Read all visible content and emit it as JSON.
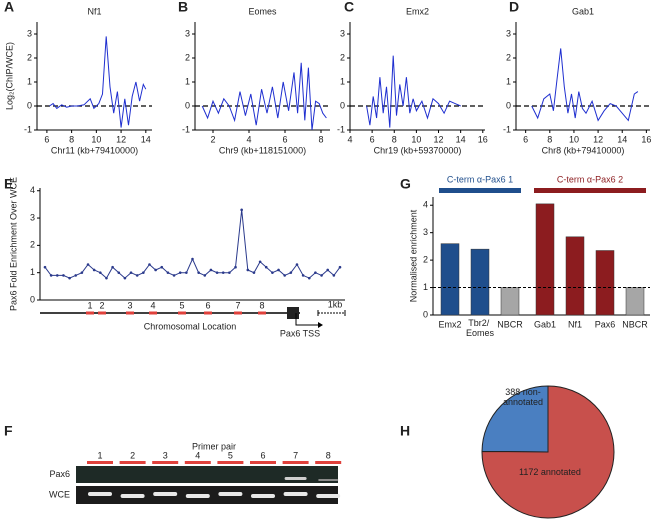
{
  "chart_data": [
    {
      "panel": "A",
      "type": "line",
      "title": "Nf1",
      "xlabel": "Chr11 (kb+79410000)",
      "ylabel": "Log₂(ChIP/WCE)",
      "x": [
        6.2,
        6.5,
        6.8,
        7.2,
        7.6,
        8,
        8.5,
        9,
        9.5,
        9.8,
        10.2,
        10.5,
        10.8,
        11.1,
        11.4,
        11.7,
        12,
        12.3,
        12.6,
        12.9,
        13.2,
        13.5,
        13.8,
        14
      ],
      "series": [
        {
          "color": "#1f2fd0",
          "values": [
            0,
            0.1,
            -0.1,
            0.05,
            -0.05,
            0,
            0,
            0.05,
            0.3,
            -0.1,
            0.1,
            0.5,
            2.9,
            0.8,
            -0.3,
            0.6,
            -0.9,
            0.3,
            -0.8,
            0.4,
            1,
            0.2,
            0.9,
            0.7
          ]
        }
      ],
      "xlim": [
        5.2,
        14.5
      ],
      "xticks": [
        6,
        8,
        10,
        12,
        14
      ],
      "ylim": [
        -1,
        3.5
      ],
      "yticks": [
        -1,
        0,
        1,
        2,
        3
      ],
      "reference_line": 0
    },
    {
      "panel": "B",
      "type": "line",
      "title": "Eomes",
      "xlabel": "Chr9 (kb+118151000)",
      "x": [
        1.4,
        1.7,
        2.0,
        2.3,
        2.6,
        2.9,
        3.2,
        3.5,
        3.8,
        4.1,
        4.4,
        4.7,
        5.0,
        5.3,
        5.6,
        5.9,
        6.2,
        6.5,
        6.7,
        6.9,
        7.1,
        7.3,
        7.5,
        7.7,
        7.9,
        8.1,
        8.3
      ],
      "series": [
        {
          "color": "#1f2fd0",
          "values": [
            0,
            -0.5,
            0.2,
            -0.3,
            0.3,
            0,
            -0.6,
            0.6,
            -0.4,
            0.5,
            -0.8,
            0.7,
            -0.3,
            0.8,
            -0.5,
            1.0,
            -0.2,
            1.4,
            -0.3,
            1.8,
            -0.6,
            1.6,
            -1.0,
            0.2,
            0.1,
            -0.3,
            -0.5
          ]
        }
      ],
      "xlim": [
        1,
        8.5
      ],
      "xticks": [
        2,
        4,
        6,
        8
      ],
      "ylim": [
        -1,
        3.5
      ],
      "yticks": [
        -1,
        0,
        1,
        2,
        3
      ],
      "reference_line": 0
    },
    {
      "panel": "C",
      "type": "line",
      "title": "Emx2",
      "xlabel": "Chr19 (kb+59370000)",
      "x": [
        5.5,
        5.8,
        6.1,
        6.4,
        6.7,
        7.0,
        7.3,
        7.6,
        7.9,
        8.2,
        8.5,
        8.8,
        9.1,
        9.4,
        9.7,
        10,
        10.5,
        11,
        11.5,
        12,
        12.5,
        13,
        13.5,
        14
      ],
      "series": [
        {
          "color": "#1f2fd0",
          "values": [
            0,
            -0.8,
            0.4,
            -0.5,
            1.2,
            -0.3,
            0.8,
            -0.9,
            2.1,
            -0.4,
            0.9,
            0,
            1.2,
            -0.3,
            0.3,
            -0.2,
            0.2,
            -0.5,
            0.3,
            0.1,
            -0.3,
            0.2,
            0.1,
            0
          ]
        }
      ],
      "xlim": [
        4,
        16.2
      ],
      "xticks": [
        4,
        6,
        8,
        10,
        12,
        14,
        16
      ],
      "ylim": [
        -1,
        3.5
      ],
      "yticks": [
        -1,
        0,
        1,
        2,
        3
      ],
      "reference_line": 0
    },
    {
      "panel": "D",
      "type": "line",
      "title": "Gab1",
      "xlabel": "Chr8 (kb+79410000)",
      "x": [
        6.5,
        7,
        7.5,
        8,
        8.3,
        8.6,
        8.9,
        9.2,
        9.5,
        9.8,
        10.1,
        10.4,
        10.7,
        11,
        11.5,
        12,
        12.5,
        13,
        13.5,
        14,
        14.5,
        15,
        15.3
      ],
      "series": [
        {
          "color": "#1f2fd0",
          "values": [
            0,
            -0.5,
            0.3,
            0.5,
            -0.2,
            1.1,
            2.4,
            0.8,
            -0.3,
            0.5,
            -0.5,
            0.6,
            -0.1,
            -0.3,
            0.2,
            -0.6,
            -0.2,
            0.1,
            0,
            -0.3,
            -0.6,
            0.5,
            0.6
          ]
        }
      ],
      "xlim": [
        5.2,
        16.3
      ],
      "xticks": [
        6,
        8,
        10,
        12,
        14,
        16
      ],
      "ylim": [
        -1,
        3.5
      ],
      "yticks": [
        -1,
        0,
        1,
        2,
        3
      ],
      "reference_line": 0
    },
    {
      "panel": "E",
      "type": "line",
      "ylabel": "Pax6 Fold Enrichment Over WCE",
      "xlabel": "Chromosomal Location",
      "series": [
        {
          "color": "#2b3a8c",
          "values": [
            1.2,
            0.9,
            0.9,
            0.9,
            0.8,
            0.9,
            1.0,
            1.3,
            1.1,
            1.0,
            0.8,
            1.2,
            1.0,
            0.8,
            1.0,
            0.9,
            1.0,
            1.3,
            1.1,
            1.2,
            1.0,
            0.9,
            1.0,
            1.0,
            1.5,
            1.0,
            0.9,
            1.1,
            1.0,
            1.0,
            1.0,
            1.2,
            3.3,
            1.1,
            1.0,
            1.4,
            1.2,
            1.0,
            1.1,
            0.9,
            1.0,
            1.3,
            0.9,
            0.8,
            1.0,
            0.9,
            1.1,
            0.9,
            1.2
          ]
        }
      ],
      "ylim": [
        0,
        4.1
      ],
      "yticks": [
        0,
        1,
        2,
        3,
        4
      ],
      "markers": true,
      "primer_labels": [
        "1",
        "2",
        "3",
        "4",
        "5",
        "6",
        "7",
        "8"
      ],
      "primer_color": "#e0413c",
      "tss_label": "Pax6 TSS",
      "scale_label": "1kb"
    },
    {
      "panel": "G",
      "type": "bar",
      "ylabel": "Normalised enrichment",
      "categories": [
        "Emx2",
        "Tbr2/ Eomes",
        "NBCR",
        "Gab1",
        "Nf1",
        "Pax6",
        "NBCR"
      ],
      "values": [
        2.6,
        2.4,
        1,
        4.05,
        2.85,
        2.35,
        1
      ],
      "colors": [
        "#1f4e8c",
        "#1f4e8c",
        "#a6a6a6",
        "#8c1c1f",
        "#8c1c1f",
        "#8c1c1f",
        "#a6a6a6"
      ],
      "ylim": [
        0,
        4.3
      ],
      "yticks": [
        0,
        1,
        2,
        3,
        4
      ],
      "reference_line": 1,
      "groups": [
        {
          "name": "C-term α-Pax6 1",
          "color": "#1f4e8c"
        },
        {
          "name": "C-term α-Pax6 2",
          "color": "#8c1c1f"
        }
      ]
    },
    {
      "panel": "H",
      "type": "pie",
      "values": [
        388,
        1172
      ],
      "value_labels": [
        "388 non-annotated",
        "1172 annotated"
      ],
      "colors": [
        "#4a7fc1",
        "#c8504c"
      ]
    }
  ],
  "gel": {
    "panel": "F",
    "title": "Primer pair",
    "lanes": [
      "1",
      "2",
      "3",
      "4",
      "5",
      "6",
      "7",
      "8"
    ],
    "rows": [
      "Pax6",
      "WCE"
    ]
  }
}
